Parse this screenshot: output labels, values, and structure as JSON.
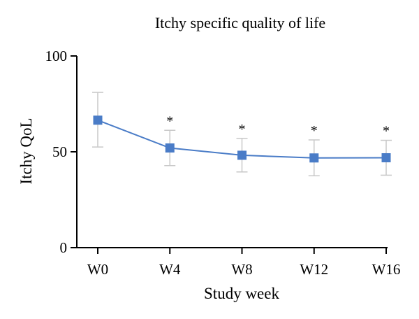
{
  "chart_data": {
    "type": "line",
    "title": "Itchy specific quality of life",
    "xlabel": "Study week",
    "ylabel": "Itchy QoL",
    "categories": [
      "W0",
      "W4",
      "W8",
      "W12",
      "W16"
    ],
    "y_ticks": [
      "0",
      "50",
      "100"
    ],
    "ylim": [
      0,
      100
    ],
    "series": [
      {
        "values": [
          66.5,
          52.0,
          48.2,
          46.8,
          46.9
        ],
        "error_low": [
          52.5,
          42.8,
          39.5,
          37.5,
          37.8
        ],
        "error_high": [
          81.0,
          61.2,
          57.0,
          56.2,
          56.0
        ],
        "significance": [
          "",
          "*",
          "*",
          "*",
          "*"
        ]
      }
    ],
    "colors": {
      "series": "#4a7cc7",
      "error_bar": "#c8c8c8",
      "axis": "#000000"
    },
    "marker": "square",
    "grid": false,
    "legend": "none"
  }
}
